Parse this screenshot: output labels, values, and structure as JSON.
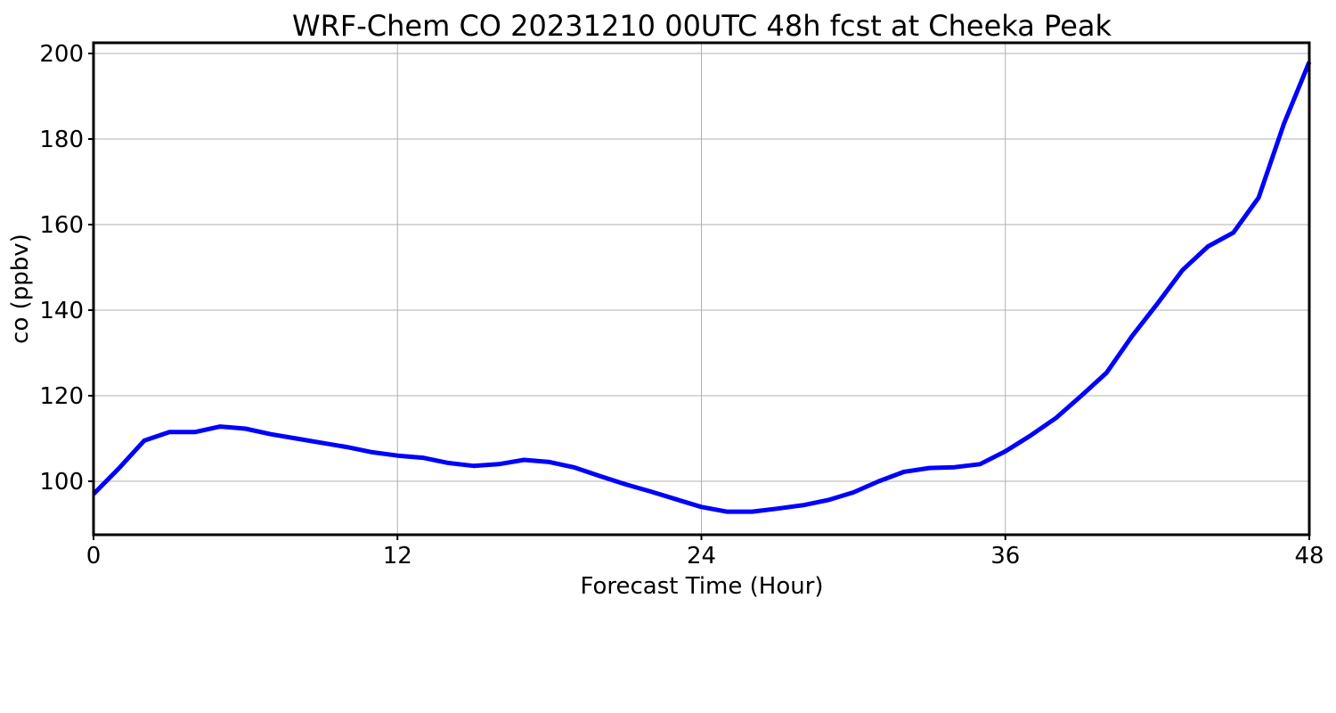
{
  "chart_data": {
    "type": "line",
    "title": "WRF-Chem CO  20231210 00UTC 48h fcst at Cheeka Peak",
    "xlabel": "Forecast Time (Hour)",
    "ylabel": "co  (ppbv)",
    "xlim": [
      0,
      48
    ],
    "ylim": [
      87.5,
      202.5
    ],
    "xticks": [
      0,
      12,
      24,
      36,
      48
    ],
    "yticks": [
      100,
      120,
      140,
      160,
      180,
      200
    ],
    "grid": true,
    "series": [
      {
        "color": "#0000ff",
        "x": [
          0,
          1,
          2,
          3,
          4,
          5,
          6,
          7,
          8,
          9,
          10,
          11,
          12,
          13,
          14,
          15,
          16,
          17,
          18,
          19,
          20,
          21,
          22,
          23,
          24,
          25,
          26,
          27,
          28,
          29,
          30,
          31,
          32,
          33,
          34,
          35,
          36,
          37,
          38,
          39,
          40,
          41,
          42,
          43,
          44,
          45,
          46,
          47,
          48
        ],
        "values": [
          97,
          103,
          109.5,
          111.5,
          111.5,
          112.8,
          112.3,
          111,
          110,
          109,
          108,
          106.8,
          106,
          105.5,
          104.3,
          103.6,
          104,
          105,
          104.5,
          103.2,
          101.2,
          99.3,
          97.6,
          95.8,
          94,
          92.9,
          92.9,
          93.6,
          94.4,
          95.6,
          97.4,
          100,
          102.2,
          103.1,
          103.3,
          104,
          107,
          110.7,
          114.8,
          120,
          125.4,
          133.9,
          141.5,
          149.4,
          154.9,
          158.1,
          166.3,
          183.6,
          198
        ]
      }
    ]
  }
}
